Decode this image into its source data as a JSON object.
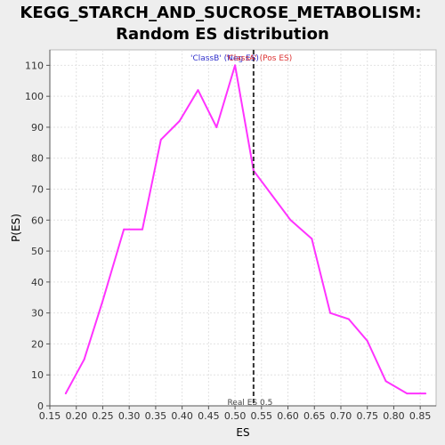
{
  "chart_data": {
    "type": "line",
    "title_lines": [
      "KEGG_STARCH_AND_SUCROSE_METABOLISM:",
      "Random ES distribution"
    ],
    "xlabel": "ES",
    "ylabel": "P(ES)",
    "xlim": [
      0.15,
      0.88
    ],
    "ylim": [
      0,
      115
    ],
    "x_ticks": [
      0.15,
      0.2,
      0.25,
      0.3,
      0.35,
      0.4,
      0.45,
      0.5,
      0.55,
      0.6,
      0.65,
      0.7,
      0.75,
      0.8,
      0.85
    ],
    "x_tick_labels": [
      "0.15",
      "0.20",
      "0.25",
      "0.30",
      "0.35",
      "0.40",
      "0.45",
      "0.50",
      "0.55",
      "0.60",
      "0.65",
      "0.70",
      "0.75",
      "0.80",
      "0.85"
    ],
    "y_ticks": [
      0,
      10,
      20,
      30,
      40,
      50,
      60,
      70,
      80,
      90,
      100,
      110
    ],
    "y_tick_labels": [
      "0",
      "10",
      "20",
      "30",
      "40",
      "50",
      "60",
      "70",
      "80",
      "90",
      "100",
      "110"
    ],
    "grid": true,
    "series": [
      {
        "color": "#ff33ff",
        "x": [
          0.18,
          0.215,
          0.25,
          0.29,
          0.325,
          0.36,
          0.395,
          0.43,
          0.465,
          0.5,
          0.535,
          0.57,
          0.605,
          0.645,
          0.68,
          0.715,
          0.75,
          0.785,
          0.825,
          0.86
        ],
        "y": [
          4,
          15,
          34,
          57,
          57,
          86,
          92,
          102,
          90,
          110,
          76,
          68,
          60,
          54,
          30,
          28,
          21,
          8,
          4,
          4
        ]
      }
    ],
    "real_es": {
      "value": 0.535,
      "label": "Real ES 0.5",
      "color": "#333333"
    },
    "legend": {
      "placement": "top-center",
      "items": [
        {
          "text": "'ClassB' (Neg ES)",
          "color": "#3333cc"
        },
        {
          "text": "'ClassA' (Pos ES)",
          "color": "#dd3333"
        }
      ]
    }
  }
}
